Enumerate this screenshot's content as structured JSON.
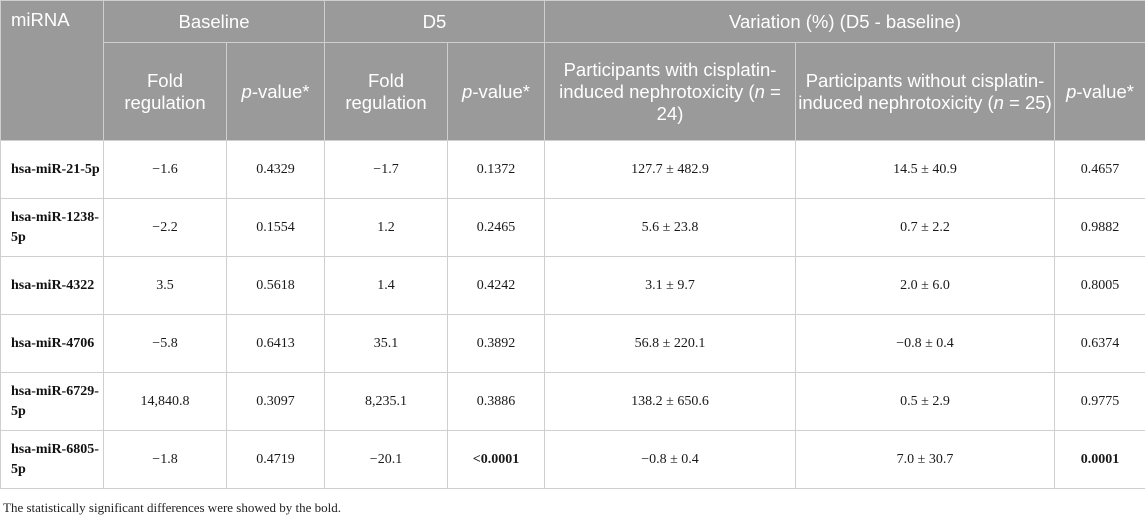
{
  "header": {
    "mirna": "miRNA",
    "baseline": "Baseline",
    "d5": "D5",
    "variation": "Variation (%) (D5 - baseline)",
    "fold_regulation_1": "Fold regulation",
    "p_value_prefix": "p",
    "p_value_suffix": "-value*",
    "fold_regulation_2": "Fold regulation",
    "with_neph_line1": "Participants with cisplatin-induced nephrotoxicity (",
    "with_neph_n": "n",
    "with_neph_line2": " = 24)",
    "without_neph_line1": "Participants without cisplatin-induced nephrotoxicity (",
    "without_neph_n": "n",
    "without_neph_line2": " = 25)"
  },
  "rows": [
    {
      "mirna": "hsa-miR-21-5p",
      "b_fold": "−1.6",
      "b_p": "0.4329",
      "d5_fold": "−1.7",
      "d5_p": "0.1372",
      "var_with": "127.7 ± 482.9",
      "var_without": "14.5 ± 40.9",
      "var_p": "0.4657"
    },
    {
      "mirna": "hsa-miR-1238-5p",
      "b_fold": "−2.2",
      "b_p": "0.1554",
      "d5_fold": "1.2",
      "d5_p": "0.2465",
      "var_with": "5.6 ± 23.8",
      "var_without": "0.7 ± 2.2",
      "var_p": "0.9882"
    },
    {
      "mirna": "hsa-miR-4322",
      "b_fold": "3.5",
      "b_p": "0.5618",
      "d5_fold": "1.4",
      "d5_p": "0.4242",
      "var_with": "3.1 ± 9.7",
      "var_without": "2.0 ± 6.0",
      "var_p": "0.8005"
    },
    {
      "mirna": "hsa-miR-4706",
      "b_fold": "−5.8",
      "b_p": "0.6413",
      "d5_fold": "35.1",
      "d5_p": "0.3892",
      "var_with": "56.8 ± 220.1",
      "var_without": "−0.8 ± 0.4",
      "var_p": "0.6374"
    },
    {
      "mirna": "hsa-miR-6729-5p",
      "b_fold": "14,840.8",
      "b_p": "0.3097",
      "d5_fold": "8,235.1",
      "d5_p": "0.3886",
      "var_with": "138.2 ± 650.6",
      "var_without": "0.5 ± 2.9",
      "var_p": "0.9775"
    },
    {
      "mirna": "hsa-miR-6805-5p",
      "b_fold": "−1.8",
      "b_p": "0.4719",
      "d5_fold": "−20.1",
      "d5_p": "<0.0001",
      "var_with": "−0.8 ± 0.4",
      "var_without": "7.0 ± 30.7",
      "var_p": "0.0001"
    }
  ],
  "footnote": "The statistically significant differences were showed by the bold."
}
